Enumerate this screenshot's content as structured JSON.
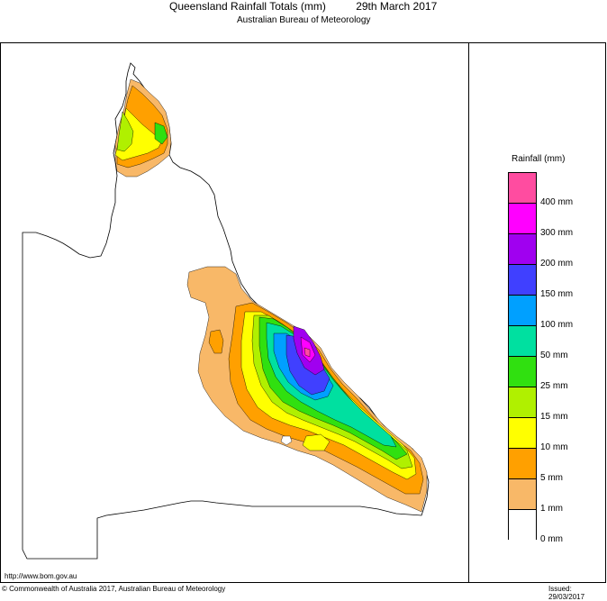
{
  "title": "Queensland Rainfall Totals (mm)          29th March 2017",
  "subtitle": "Australian Bureau of Meteorology",
  "legend": {
    "title": "Rainfall (mm)",
    "items": [
      {
        "label": "400 mm",
        "color": "#ff4ca0"
      },
      {
        "label": "300 mm",
        "color": "#ff00ff"
      },
      {
        "label": "200 mm",
        "color": "#a000f0"
      },
      {
        "label": "150 mm",
        "color": "#4040ff"
      },
      {
        "label": "100 mm",
        "color": "#00a0ff"
      },
      {
        "label": "50 mm",
        "color": "#00e0a0"
      },
      {
        "label": "25 mm",
        "color": "#30e010"
      },
      {
        "label": "15 mm",
        "color": "#b0f000"
      },
      {
        "label": "10 mm",
        "color": "#ffff00"
      },
      {
        "label": "5 mm",
        "color": "#ffa000"
      },
      {
        "label": "1 mm",
        "color": "#f8b868"
      },
      {
        "label": "0 mm",
        "color": "#ffffff"
      }
    ]
  },
  "footer": {
    "url": "http://www.bom.gov.au",
    "copyright": "© Commonwealth of Australia 2017, Australian Bureau of Meteorology",
    "issued": "Issued: 29/03/2017"
  }
}
